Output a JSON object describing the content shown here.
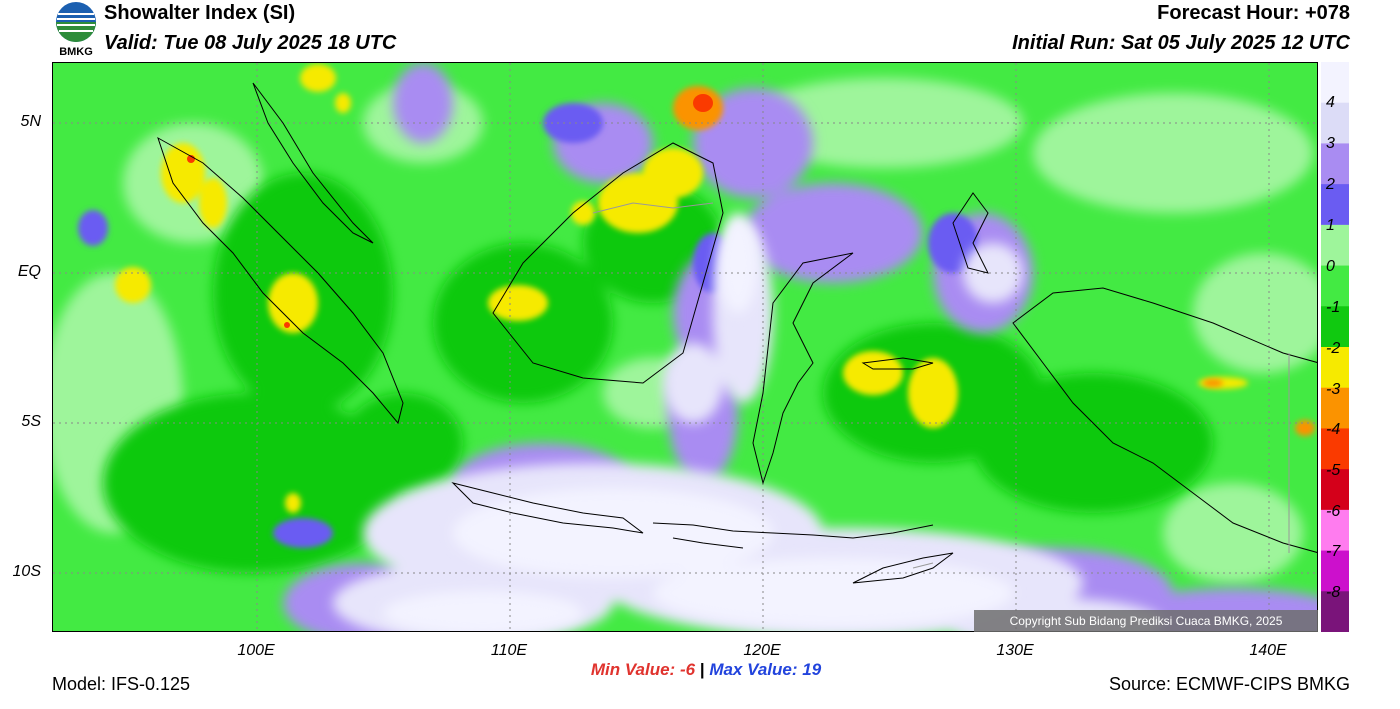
{
  "header": {
    "title": "Showalter Index (SI)",
    "valid": "Valid: Tue 08 July 2025 18 UTC",
    "forecast_hour": "Forecast Hour: +078",
    "initial_run": "Initial Run: Sat 05 July 2025 12 UTC",
    "logo_text": "BMKG"
  },
  "map": {
    "lat_labels": [
      "5N",
      "EQ",
      "5S",
      "10S"
    ],
    "lon_labels": [
      "100E",
      "110E",
      "120E",
      "130E",
      "140E"
    ],
    "copyright": "Copyright Sub Bidang Prediksi Cuaca BMKG, 2025"
  },
  "legend": {
    "labels": [
      "4",
      "3",
      "2",
      "1",
      "0",
      "-1",
      "-2",
      "-3",
      "-4",
      "-5",
      "-6",
      "-7",
      "-8"
    ],
    "colors": [
      "#f3f3ff",
      "#dcdcf7",
      "#a98cf2",
      "#6a5cf2",
      "#9ef59b",
      "#43ea43",
      "#10c910",
      "#f6ea00",
      "#fb9300",
      "#fa3a00",
      "#d4001a",
      "#ff7cef",
      "#cc10cc",
      "#7a147a"
    ]
  },
  "stats": {
    "min_label": "Min Value:",
    "min_value": "-6",
    "separator": "|",
    "max_label": "Max Value:",
    "max_value": "19"
  },
  "footer": {
    "model": "Model: IFS-0.125",
    "source": "Source: ECMWF-CIPS BMKG"
  }
}
